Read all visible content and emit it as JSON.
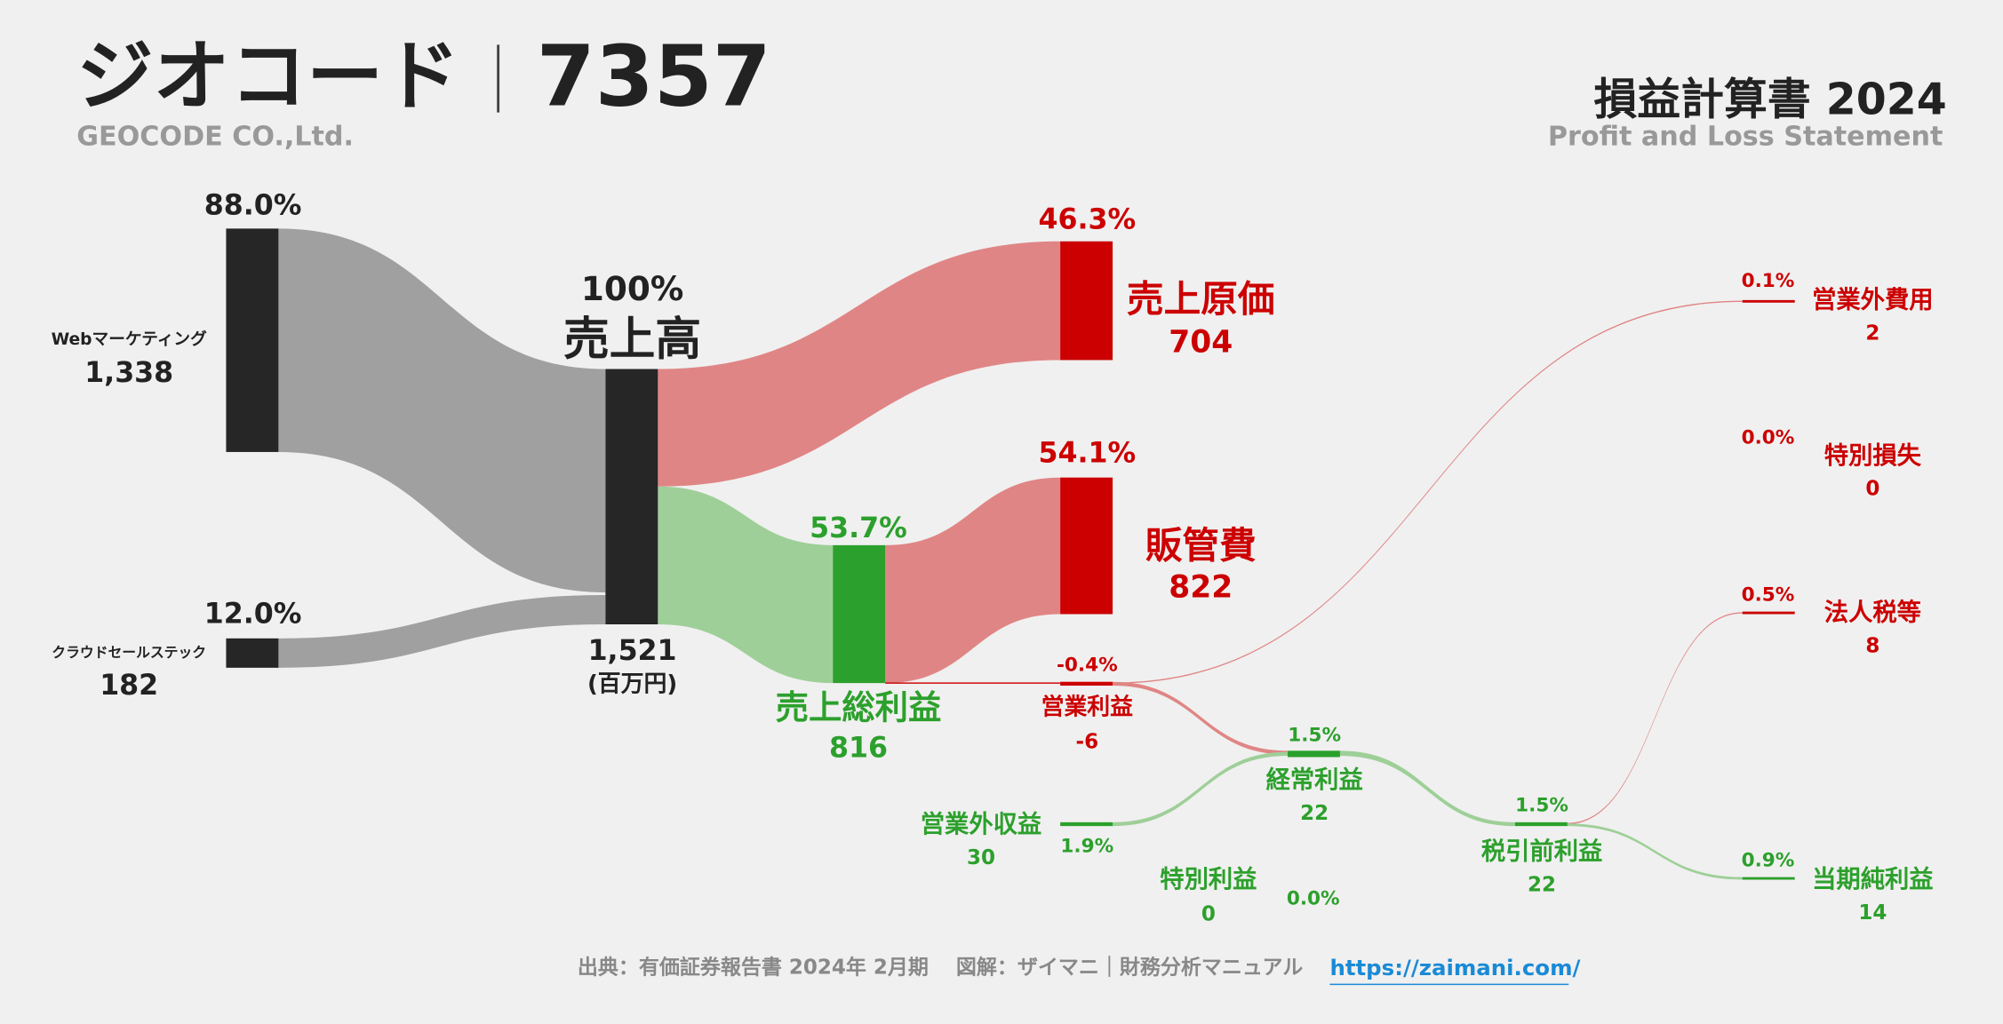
{
  "header": {
    "company": "ジオコード",
    "code": "7357",
    "company_en": "GEOCODE CO.,Ltd.",
    "statement": "損益計算書 2024",
    "statement_en": "Profit and Loss Statement"
  },
  "chart_data": {
    "type": "sankey",
    "unit": "(百万円)",
    "nodes": [
      {
        "name": "Webマーケティング",
        "value": 1338,
        "value_label": "1,338",
        "share": 88.0,
        "share_label": "88.0%",
        "color": "#262626"
      },
      {
        "name": "クラウドセールステック",
        "value": 182,
        "share": 12.0,
        "share_label": "12.0%",
        "color": "#262626"
      },
      {
        "name": "売上高",
        "value": 1521,
        "value_label": "1,521",
        "share": 100,
        "share_label": "100%",
        "color": "#262626"
      },
      {
        "name": "売上原価",
        "value": 704,
        "share": 46.3,
        "share_label": "46.3%",
        "color": "#cc0000"
      },
      {
        "name": "売上総利益",
        "value": 816,
        "share": 53.7,
        "share_label": "53.7%",
        "color": "#2ca02c"
      },
      {
        "name": "販管費",
        "value": 822,
        "share": 54.1,
        "share_label": "54.1%",
        "color": "#cc0000"
      },
      {
        "name": "営業利益",
        "value": -6,
        "share": -0.4,
        "share_label": "-0.4%",
        "color": "#cc0000"
      },
      {
        "name": "営業外収益",
        "value": 30,
        "share": 1.9,
        "share_label": "1.9%",
        "color": "#2ca02c"
      },
      {
        "name": "経常利益",
        "value": 22,
        "share": 1.5,
        "share_label": "1.5%",
        "color": "#2ca02c"
      },
      {
        "name": "特別利益",
        "value": 0,
        "share": 0.0,
        "share_label": "0.0%",
        "color": "#2ca02c"
      },
      {
        "name": "税引前利益",
        "value": 22,
        "share": 1.5,
        "share_label": "1.5%",
        "color": "#2ca02c"
      },
      {
        "name": "営業外費用",
        "value": 2,
        "share": 0.1,
        "share_label": "0.1%",
        "color": "#cc0000"
      },
      {
        "name": "特別損失",
        "value": 0,
        "share": 0.0,
        "share_label": "0.0%",
        "color": "#cc0000"
      },
      {
        "name": "法人税等",
        "value": 8,
        "share": 0.5,
        "share_label": "0.5%",
        "color": "#cc0000"
      },
      {
        "name": "当期純利益",
        "value": 14,
        "share": 0.9,
        "share_label": "0.9%",
        "color": "#2ca02c"
      }
    ],
    "links": [
      {
        "source": 0,
        "target": 2,
        "value": 1338,
        "color": "#a0a0a0"
      },
      {
        "source": 1,
        "target": 2,
        "value": 182,
        "color": "#a0a0a0"
      },
      {
        "source": 2,
        "target": 3,
        "value": 704,
        "color": "#e08585"
      },
      {
        "source": 2,
        "target": 4,
        "value": 816,
        "color": "#9ecf98"
      },
      {
        "source": 4,
        "target": 5,
        "value": 816,
        "color": "#e08585"
      },
      {
        "source": 6,
        "target": 11,
        "value": 2,
        "color": "#e08585"
      },
      {
        "source": 6,
        "target": 8,
        "value": -6,
        "color": "#e08585"
      },
      {
        "source": 7,
        "target": 8,
        "value": 30,
        "color": "#9ecf98"
      },
      {
        "source": 8,
        "target": 10,
        "value": 22,
        "color": "#9ecf98"
      },
      {
        "source": 10,
        "target": 13,
        "value": 8,
        "color": "#e08585"
      },
      {
        "source": 10,
        "target": 14,
        "value": 14,
        "color": "#9ecf98"
      }
    ]
  },
  "footer": {
    "source": "出典：有価証券報告書 2024年 2月期　 図解：ザイマニ｜財務分析マニュアル",
    "link": "https://zaimani.com/"
  }
}
